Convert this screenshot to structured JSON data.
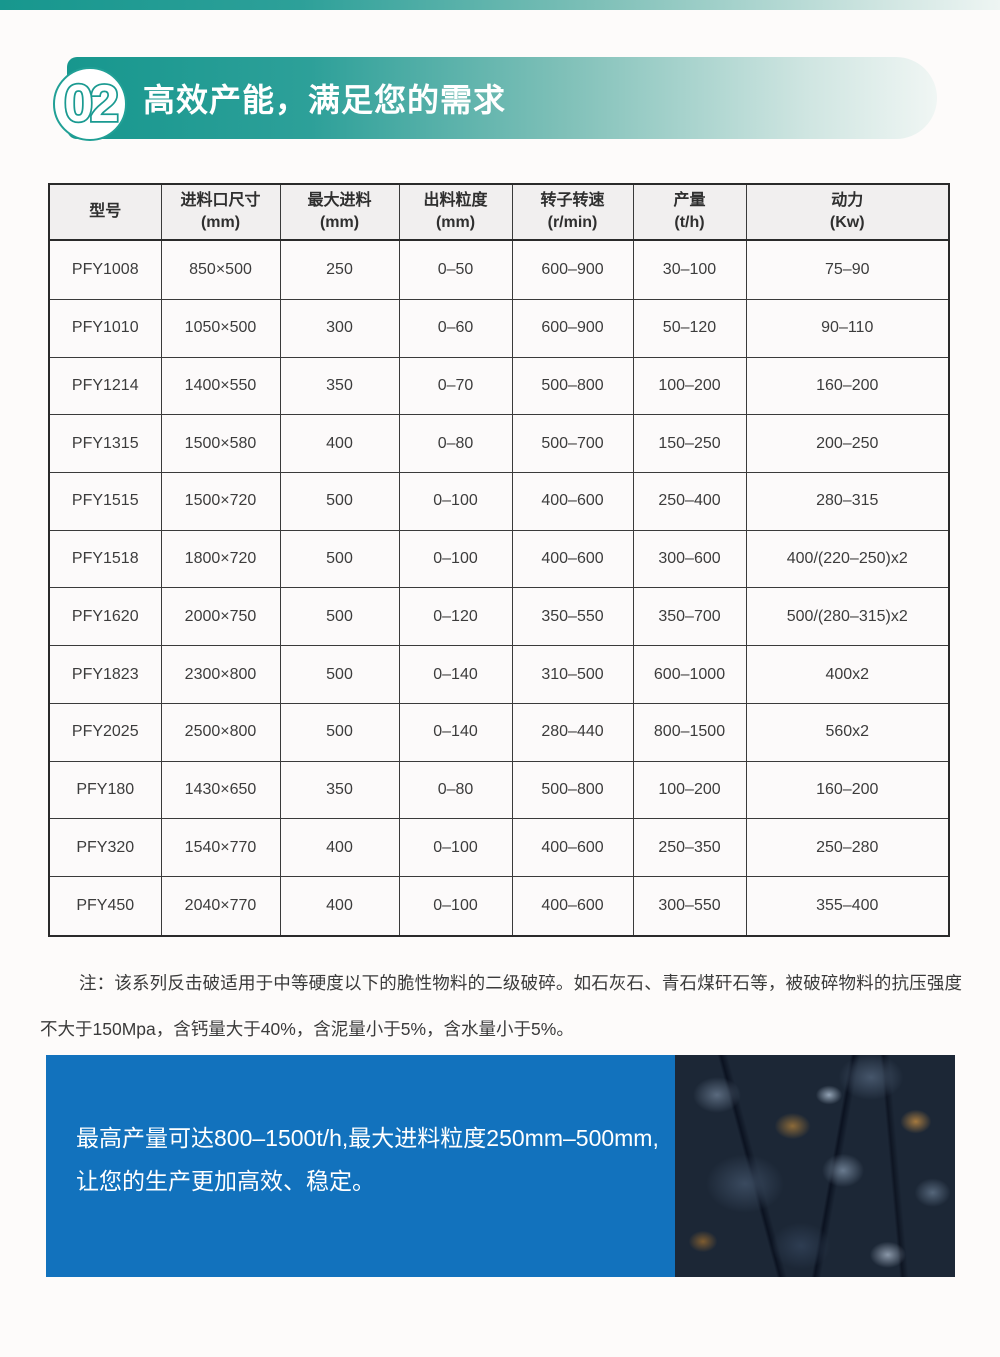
{
  "accent": {
    "teal": "#17978e",
    "blue": "#1272bd"
  },
  "header": {
    "number": "02",
    "title": "高效产能，满足您的需求"
  },
  "table": {
    "columns": [
      {
        "label": "型号",
        "unit": ""
      },
      {
        "label": "进料口尺寸",
        "unit": "(mm)"
      },
      {
        "label": "最大进料",
        "unit": "(mm)"
      },
      {
        "label": "出料粒度",
        "unit": "(mm)"
      },
      {
        "label": "转子转速",
        "unit": "(r/min)"
      },
      {
        "label": "产量",
        "unit": "(t/h)"
      },
      {
        "label": "动力",
        "unit": "(Kw)"
      }
    ],
    "rows": [
      [
        "PFY1008",
        "850×500",
        "250",
        "0–50",
        "600–900",
        "30–100",
        "75–90"
      ],
      [
        "PFY1010",
        "1050×500",
        "300",
        "0–60",
        "600–900",
        "50–120",
        "90–110"
      ],
      [
        "PFY1214",
        "1400×550",
        "350",
        "0–70",
        "500–800",
        "100–200",
        "160–200"
      ],
      [
        "PFY1315",
        "1500×580",
        "400",
        "0–80",
        "500–700",
        "150–250",
        "200–250"
      ],
      [
        "PFY1515",
        "1500×720",
        "500",
        "0–100",
        "400–600",
        "250–400",
        "280–315"
      ],
      [
        "PFY1518",
        "1800×720",
        "500",
        "0–100",
        "400–600",
        "300–600",
        "400/(220–250)x2"
      ],
      [
        "PFY1620",
        "2000×750",
        "500",
        "0–120",
        "350–550",
        "350–700",
        "500/(280–315)x2"
      ],
      [
        "PFY1823",
        "2300×800",
        "500",
        "0–140",
        "310–500",
        "600–1000",
        "400x2"
      ],
      [
        "PFY2025",
        "2500×800",
        "500",
        "0–140",
        "280–440",
        "800–1500",
        "560x2"
      ],
      [
        "PFY180",
        "1430×650",
        "350",
        "0–80",
        "500–800",
        "100–200",
        "160–200"
      ],
      [
        "PFY320",
        "1540×770",
        "400",
        "0–100",
        "400–600",
        "250–350",
        "250–280"
      ],
      [
        "PFY450",
        "2040×770",
        "400",
        "0–100",
        "400–600",
        "300–550",
        "355–400"
      ]
    ]
  },
  "note": {
    "text": "注：该系列反击破适用于中等硬度以下的脆性物料的二级破碎。如石灰石、青石煤矸石等，被破碎物料的抗压强度不大于150Mpa，含钙量大于40%，含泥量小于5%，含水量小于5%。"
  },
  "banner": {
    "line1": "最高产量可达800–1500t/h,最大进料粒度250mm–500mm,",
    "line2": "让您的生产更加高效、稳定。"
  }
}
